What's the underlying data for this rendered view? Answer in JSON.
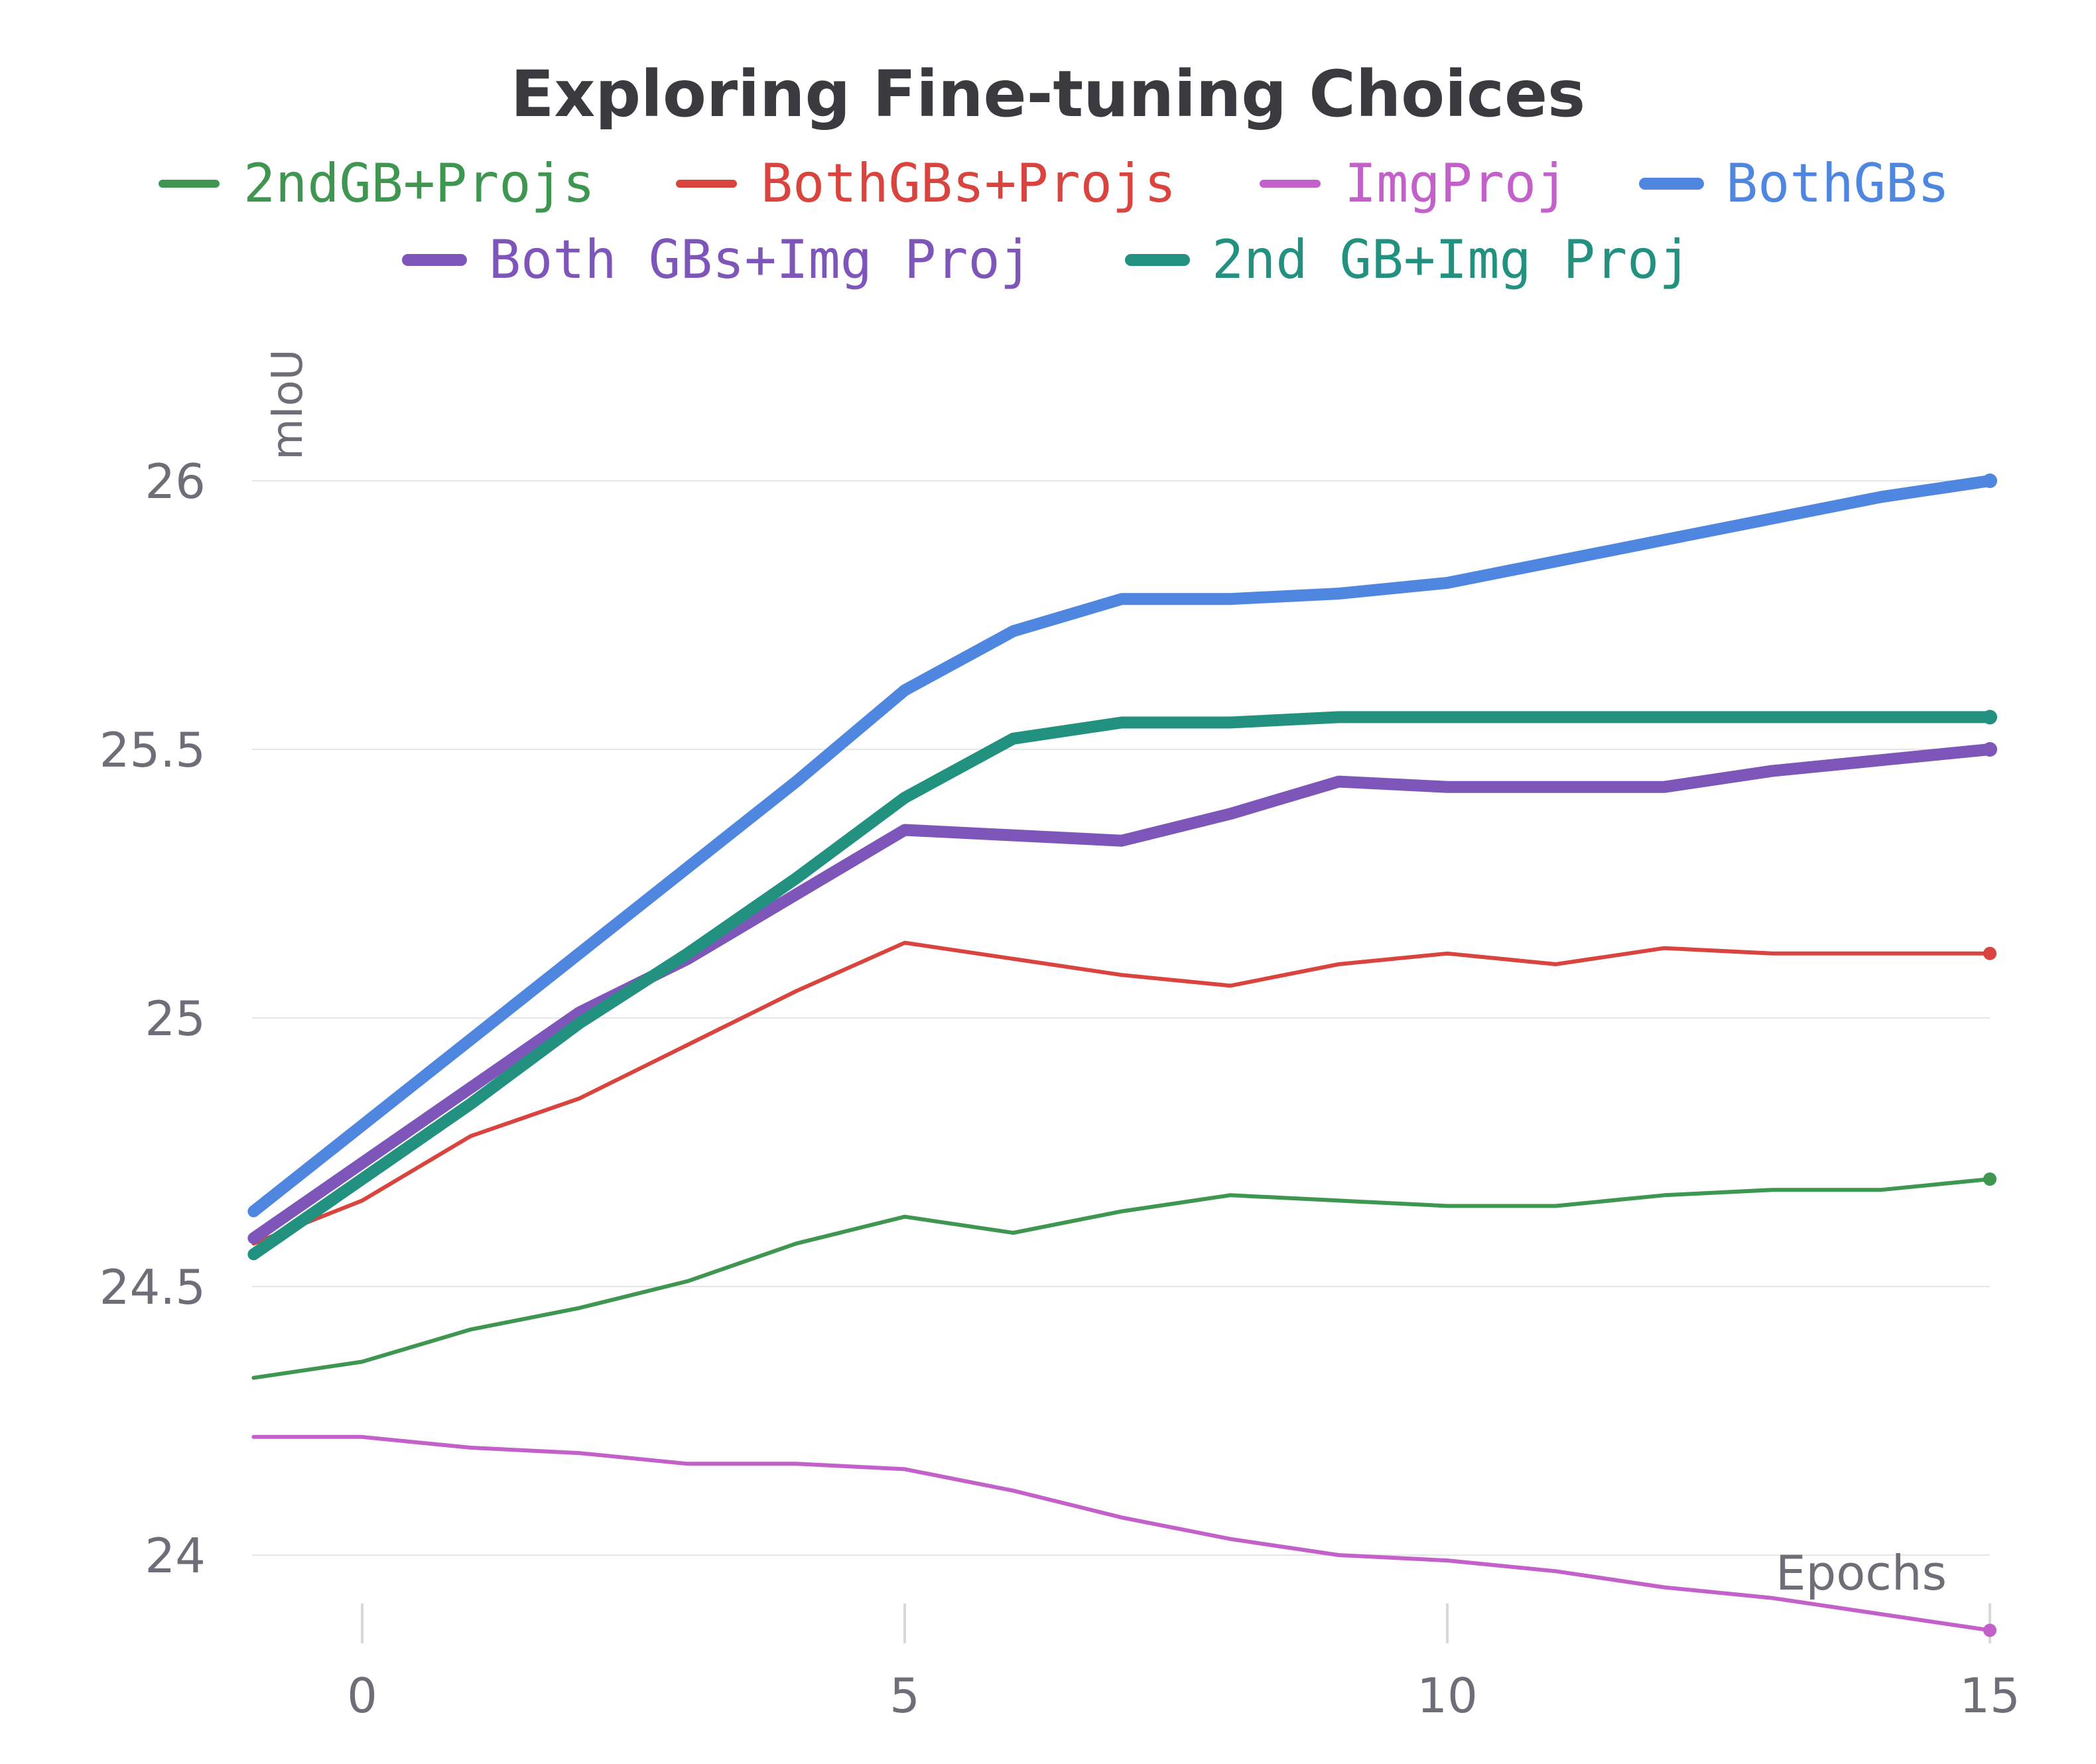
{
  "chart_data": {
    "type": "line",
    "title": "Exploring Fine-tuning Choices",
    "xlabel": "Epochs",
    "ylabel": "mIoU",
    "xlim": [
      -1,
      15
    ],
    "ylim": [
      23.88,
      26.1
    ],
    "xticks": [
      0,
      5,
      10,
      15
    ],
    "yticks": [
      24,
      24.5,
      25,
      25.5,
      26
    ],
    "ytick_labels": [
      "24",
      "24.5",
      "25",
      "25.5",
      "26"
    ],
    "grid": "horizontal",
    "legend_position": "top",
    "x": [
      -1,
      0,
      1,
      2,
      3,
      4,
      5,
      6,
      7,
      8,
      9,
      10,
      11,
      12,
      13,
      14,
      15
    ],
    "series": [
      {
        "name": "2ndGB+Projs",
        "color": "#3e9651",
        "weight": "thin",
        "values": [
          24.33,
          24.36,
          24.42,
          24.46,
          24.51,
          24.58,
          24.63,
          24.6,
          24.64,
          24.67,
          24.66,
          24.65,
          24.65,
          24.67,
          24.68,
          24.68,
          24.7
        ]
      },
      {
        "name": "BothGBs+Projs",
        "color": "#d9443f",
        "weight": "thin",
        "values": [
          24.58,
          24.66,
          24.78,
          24.85,
          24.95,
          25.05,
          25.14,
          25.11,
          25.08,
          25.06,
          25.1,
          25.12,
          25.1,
          25.13,
          25.12,
          25.12,
          25.12
        ]
      },
      {
        "name": "ImgProj",
        "color": "#c360c9",
        "weight": "thin",
        "values": [
          24.22,
          24.22,
          24.2,
          24.19,
          24.17,
          24.17,
          24.16,
          24.12,
          24.07,
          24.03,
          24.0,
          23.99,
          23.97,
          23.94,
          23.92,
          23.89,
          23.86
        ]
      },
      {
        "name": "BothGBs",
        "color": "#4f87e0",
        "weight": "thick",
        "values": [
          24.64,
          24.8,
          24.96,
          25.12,
          25.28,
          25.44,
          25.61,
          25.72,
          25.78,
          25.78,
          25.79,
          25.81,
          25.85,
          25.89,
          25.93,
          25.97,
          26.0
        ]
      },
      {
        "name": "Both GBs+Img Proj",
        "color": "#7e55b8",
        "weight": "thick",
        "values": [
          24.59,
          24.73,
          24.87,
          25.01,
          25.11,
          25.23,
          25.35,
          25.34,
          25.33,
          25.38,
          25.44,
          25.43,
          25.43,
          25.43,
          25.46,
          25.48,
          25.5
        ]
      },
      {
        "name": "2nd GB+Img Proj",
        "color": "#23917f",
        "weight": "thick",
        "values": [
          24.56,
          24.7,
          24.84,
          24.99,
          25.12,
          25.26,
          25.41,
          25.52,
          25.55,
          25.55,
          25.56,
          25.56,
          25.56,
          25.56,
          25.56,
          25.56,
          25.56
        ]
      }
    ]
  }
}
